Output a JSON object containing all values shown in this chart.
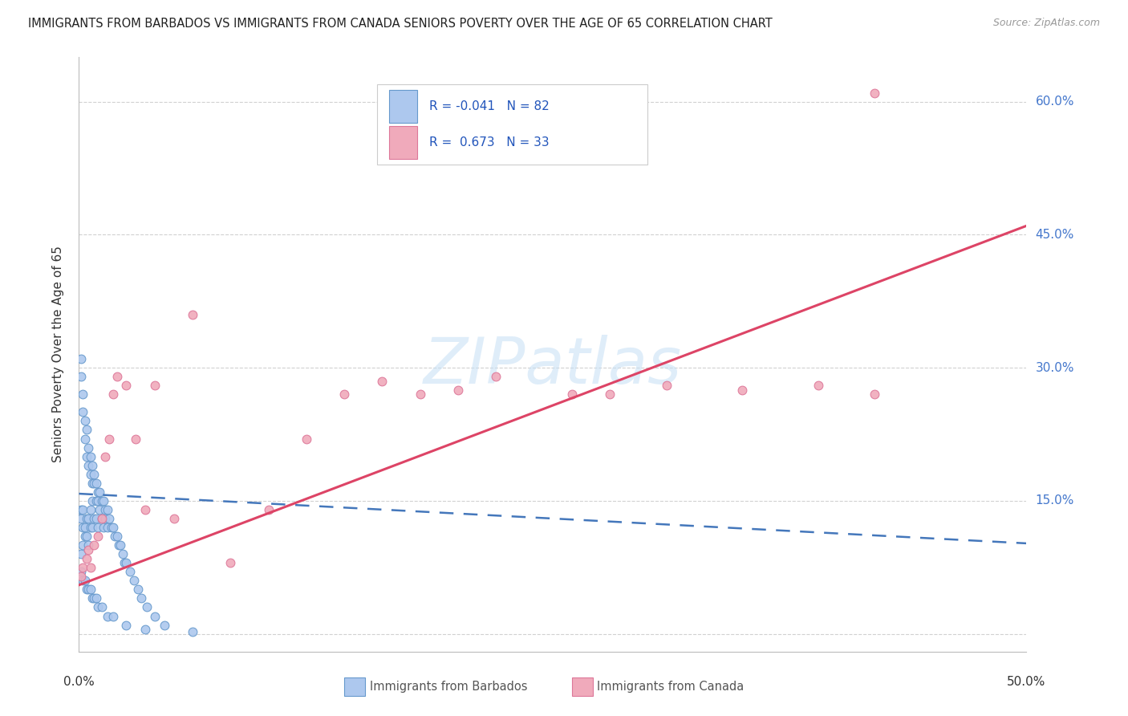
{
  "title": "IMMIGRANTS FROM BARBADOS VS IMMIGRANTS FROM CANADA SENIORS POVERTY OVER THE AGE OF 65 CORRELATION CHART",
  "source": "Source: ZipAtlas.com",
  "ylabel": "Seniors Poverty Over the Age of 65",
  "xlim": [
    0.0,
    0.5
  ],
  "ylim": [
    -0.02,
    0.65
  ],
  "yticks": [
    0.0,
    0.15,
    0.3,
    0.45,
    0.6
  ],
  "ytick_labels": [
    "",
    "15.0%",
    "30.0%",
    "45.0%",
    "60.0%"
  ],
  "barbados_color": "#adc8ee",
  "barbados_edge_color": "#6699cc",
  "canada_color": "#f0aabb",
  "canada_edge_color": "#dd7799",
  "barbados_line_color": "#4477bb",
  "canada_line_color": "#dd4466",
  "barbados_R": -0.041,
  "barbados_N": 82,
  "canada_R": 0.673,
  "canada_N": 33,
  "legend_label_barbados": "Immigrants from Barbados",
  "legend_label_canada": "Immigrants from Canada",
  "watermark": "ZIPatlas",
  "barbados_x": [
    0.001,
    0.001,
    0.001,
    0.001,
    0.001,
    0.002,
    0.002,
    0.002,
    0.002,
    0.002,
    0.003,
    0.003,
    0.003,
    0.003,
    0.004,
    0.004,
    0.004,
    0.004,
    0.005,
    0.005,
    0.005,
    0.005,
    0.006,
    0.006,
    0.006,
    0.006,
    0.007,
    0.007,
    0.007,
    0.007,
    0.008,
    0.008,
    0.008,
    0.009,
    0.009,
    0.009,
    0.01,
    0.01,
    0.01,
    0.011,
    0.011,
    0.012,
    0.012,
    0.013,
    0.013,
    0.014,
    0.014,
    0.015,
    0.015,
    0.016,
    0.017,
    0.018,
    0.019,
    0.02,
    0.021,
    0.022,
    0.023,
    0.024,
    0.025,
    0.027,
    0.029,
    0.031,
    0.033,
    0.036,
    0.04,
    0.045,
    0.001,
    0.002,
    0.003,
    0.004,
    0.005,
    0.006,
    0.007,
    0.008,
    0.009,
    0.01,
    0.012,
    0.015,
    0.018,
    0.025,
    0.035,
    0.06
  ],
  "barbados_y": [
    0.31,
    0.29,
    0.14,
    0.13,
    0.09,
    0.27,
    0.25,
    0.14,
    0.12,
    0.1,
    0.24,
    0.22,
    0.12,
    0.11,
    0.23,
    0.2,
    0.13,
    0.11,
    0.21,
    0.19,
    0.13,
    0.1,
    0.2,
    0.18,
    0.14,
    0.12,
    0.19,
    0.17,
    0.15,
    0.12,
    0.18,
    0.17,
    0.13,
    0.17,
    0.15,
    0.13,
    0.16,
    0.15,
    0.12,
    0.16,
    0.14,
    0.15,
    0.13,
    0.15,
    0.12,
    0.14,
    0.13,
    0.14,
    0.12,
    0.13,
    0.12,
    0.12,
    0.11,
    0.11,
    0.1,
    0.1,
    0.09,
    0.08,
    0.08,
    0.07,
    0.06,
    0.05,
    0.04,
    0.03,
    0.02,
    0.01,
    0.07,
    0.06,
    0.06,
    0.05,
    0.05,
    0.05,
    0.04,
    0.04,
    0.04,
    0.03,
    0.03,
    0.02,
    0.02,
    0.01,
    0.005,
    0.002
  ],
  "canada_x": [
    0.001,
    0.002,
    0.004,
    0.005,
    0.006,
    0.008,
    0.01,
    0.012,
    0.014,
    0.016,
    0.018,
    0.02,
    0.025,
    0.03,
    0.035,
    0.04,
    0.05,
    0.06,
    0.08,
    0.1,
    0.12,
    0.14,
    0.16,
    0.18,
    0.2,
    0.22,
    0.26,
    0.28,
    0.31,
    0.35,
    0.39,
    0.42,
    0.42
  ],
  "canada_y": [
    0.065,
    0.075,
    0.085,
    0.095,
    0.075,
    0.1,
    0.11,
    0.13,
    0.2,
    0.22,
    0.27,
    0.29,
    0.28,
    0.22,
    0.14,
    0.28,
    0.13,
    0.36,
    0.08,
    0.14,
    0.22,
    0.27,
    0.285,
    0.27,
    0.275,
    0.29,
    0.27,
    0.27,
    0.28,
    0.275,
    0.28,
    0.27,
    0.61
  ],
  "barbados_line_x": [
    0.0,
    0.5
  ],
  "barbados_line_y": [
    0.158,
    0.102
  ],
  "canada_line_x": [
    0.0,
    0.5
  ],
  "canada_line_y": [
    0.055,
    0.46
  ]
}
